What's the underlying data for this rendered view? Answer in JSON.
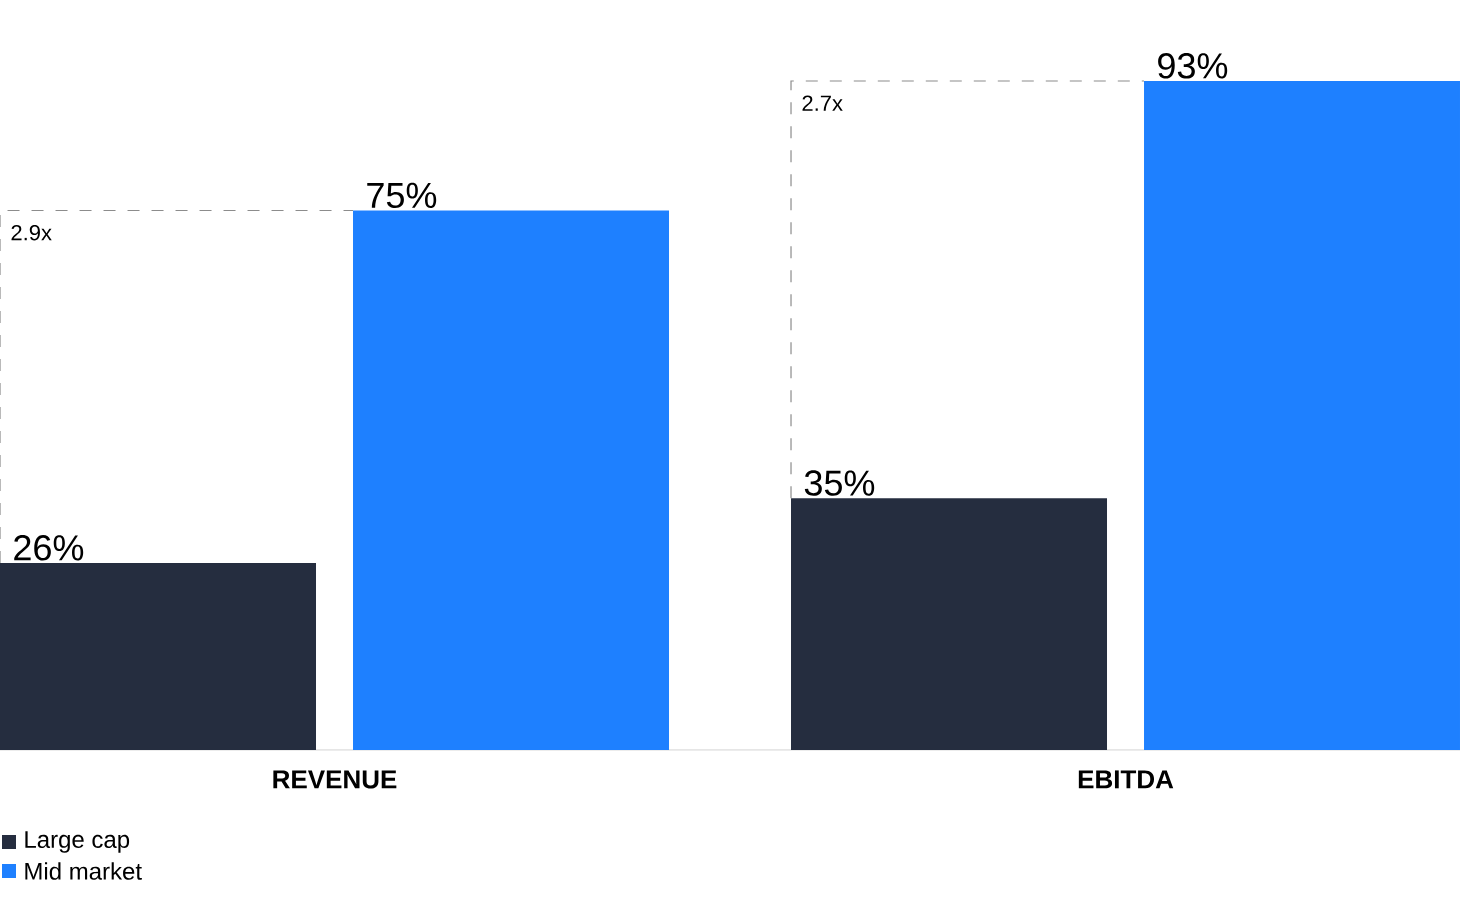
{
  "chart_data": {
    "type": "bar",
    "categories": [
      "REVENUE",
      "EBITDA"
    ],
    "series": [
      {
        "name": "Large cap",
        "color": "#252d3f",
        "values": [
          26,
          35
        ],
        "value_labels": [
          "26%",
          "35%"
        ]
      },
      {
        "name": "Mid market",
        "color": "#1e80ff",
        "values": [
          75,
          93
        ],
        "value_labels": [
          "75%",
          "93%"
        ]
      }
    ],
    "annotations": [
      "2.9x",
      "2.7x"
    ],
    "legend": "bottom left"
  }
}
